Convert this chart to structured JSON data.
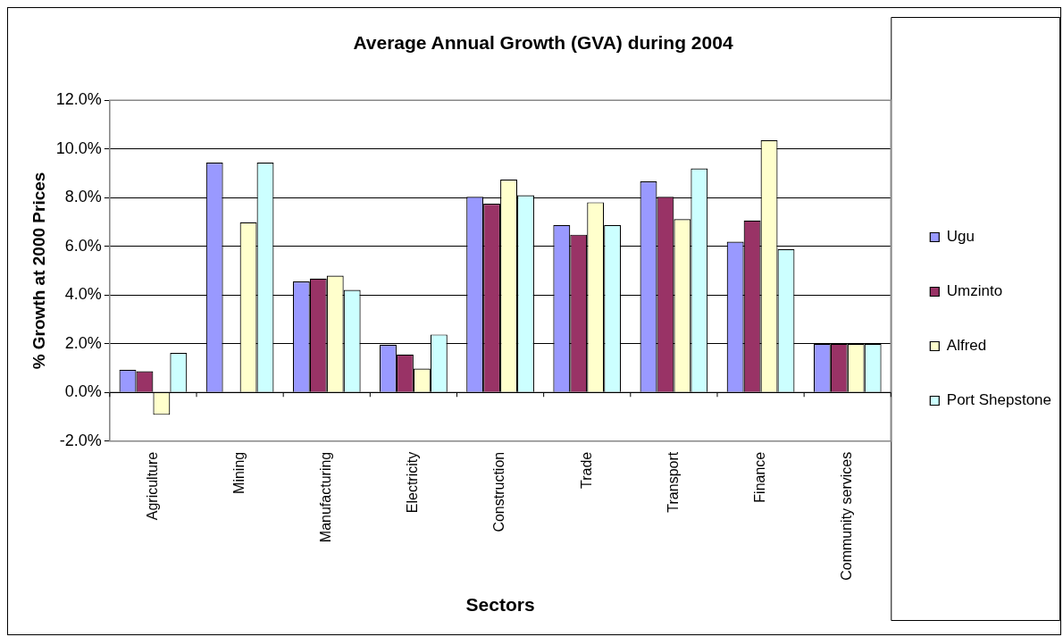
{
  "chart_data": {
    "type": "bar",
    "title": "Average Annual Growth (GVA) during 2004",
    "xlabel": "Sectors",
    "ylabel": "% Growth at 2000 Prices",
    "categories": [
      "Agriculture",
      "Mining",
      "Manufacturing",
      "Electricity",
      "Construction",
      "Trade",
      "Transport",
      "Finance",
      "Community services"
    ],
    "series": [
      {
        "name": "Ugu",
        "color": "#9999ff",
        "values": [
          0.93,
          9.44,
          4.56,
          1.96,
          8.04,
          6.88,
          8.67,
          6.19,
          2.0
        ]
      },
      {
        "name": "Umzinto",
        "color": "#993366",
        "values": [
          0.87,
          null,
          4.68,
          1.56,
          7.75,
          6.48,
          8.04,
          7.06,
          2.0
        ]
      },
      {
        "name": "Alfred",
        "color": "#ffffcc",
        "values": [
          -0.92,
          6.99,
          4.8,
          0.98,
          8.74,
          7.81,
          7.12,
          10.36,
          2.0
        ]
      },
      {
        "name": "Port Shepstone",
        "color": "#ccffff",
        "values": [
          1.62,
          9.44,
          4.21,
          2.38,
          8.1,
          6.88,
          9.2,
          5.89,
          2.0
        ]
      }
    ],
    "ylim": [
      -2,
      12
    ],
    "yticks": [
      {
        "value": -2,
        "label": "-2.0%"
      },
      {
        "value": 0,
        "label": "0.0%"
      },
      {
        "value": 2,
        "label": "2.0%"
      },
      {
        "value": 4,
        "label": "4.0%"
      },
      {
        "value": 6,
        "label": "6.0%"
      },
      {
        "value": 8,
        "label": "8.0%"
      },
      {
        "value": 10,
        "label": "10.0%"
      },
      {
        "value": 12,
        "label": "12.0%"
      }
    ],
    "grid": "y",
    "legend": "right"
  }
}
